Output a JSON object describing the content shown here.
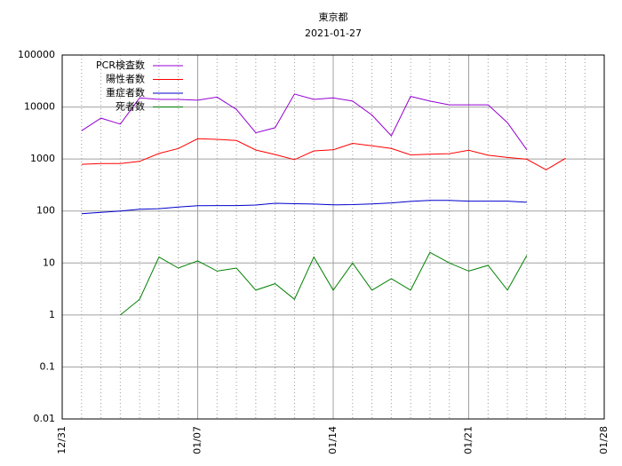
{
  "chart_data": {
    "type": "line",
    "title": "東京都",
    "subtitle": "2021-01-27",
    "x": [
      "01/01",
      "01/02",
      "01/03",
      "01/04",
      "01/05",
      "01/06",
      "01/07",
      "01/08",
      "01/09",
      "01/10",
      "01/11",
      "01/12",
      "01/13",
      "01/14",
      "01/15",
      "01/16",
      "01/17",
      "01/18",
      "01/19",
      "01/20",
      "01/21",
      "01/22",
      "01/23",
      "01/24",
      "01/25",
      "01/26"
    ],
    "series": [
      {
        "name": "PCR検査数",
        "color": "#9400d3",
        "values": [
          3500,
          6100,
          4700,
          15000,
          14000,
          14000,
          13500,
          15500,
          9000,
          3200,
          4000,
          17800,
          14000,
          15000,
          13000,
          7000,
          2800,
          16000,
          13000,
          11000,
          11000,
          11000,
          5000,
          1500,
          null,
          null
        ]
      },
      {
        "name": "陽性者数",
        "color": "#ff0000",
        "values": [
          790,
          820,
          820,
          900,
          1280,
          1590,
          2450,
          2390,
          2270,
          1490,
          1220,
          970,
          1430,
          1500,
          2000,
          1800,
          1590,
          1200,
          1240,
          1270,
          1470,
          1180,
          1070,
          990,
          620,
          1030
        ]
      },
      {
        "name": "重症者数",
        "color": "#0000cd",
        "values": [
          89,
          94,
          100,
          108,
          111,
          119,
          126,
          127,
          127,
          130,
          141,
          138,
          136,
          131,
          133,
          137,
          143,
          153,
          160,
          160,
          155,
          155,
          155,
          147,
          null,
          null
        ]
      },
      {
        "name": "死者数",
        "color": "#008000",
        "values": [
          null,
          null,
          1,
          2,
          13,
          8,
          11,
          7,
          8,
          3,
          4,
          2,
          13,
          3,
          10,
          3,
          5,
          3,
          16,
          10,
          7,
          9,
          3,
          14,
          null,
          null
        ]
      }
    ],
    "xlim": [
      "12/31",
      "01/28"
    ],
    "xticks": [
      "12/31",
      "01/07",
      "01/14",
      "01/21",
      "01/28"
    ],
    "ylim": [
      0.01,
      100000
    ],
    "yticks": [
      0.01,
      0.1,
      1,
      10,
      100,
      1000,
      10000,
      100000
    ],
    "yscale": "log",
    "grid": true,
    "legend": "top-left"
  }
}
